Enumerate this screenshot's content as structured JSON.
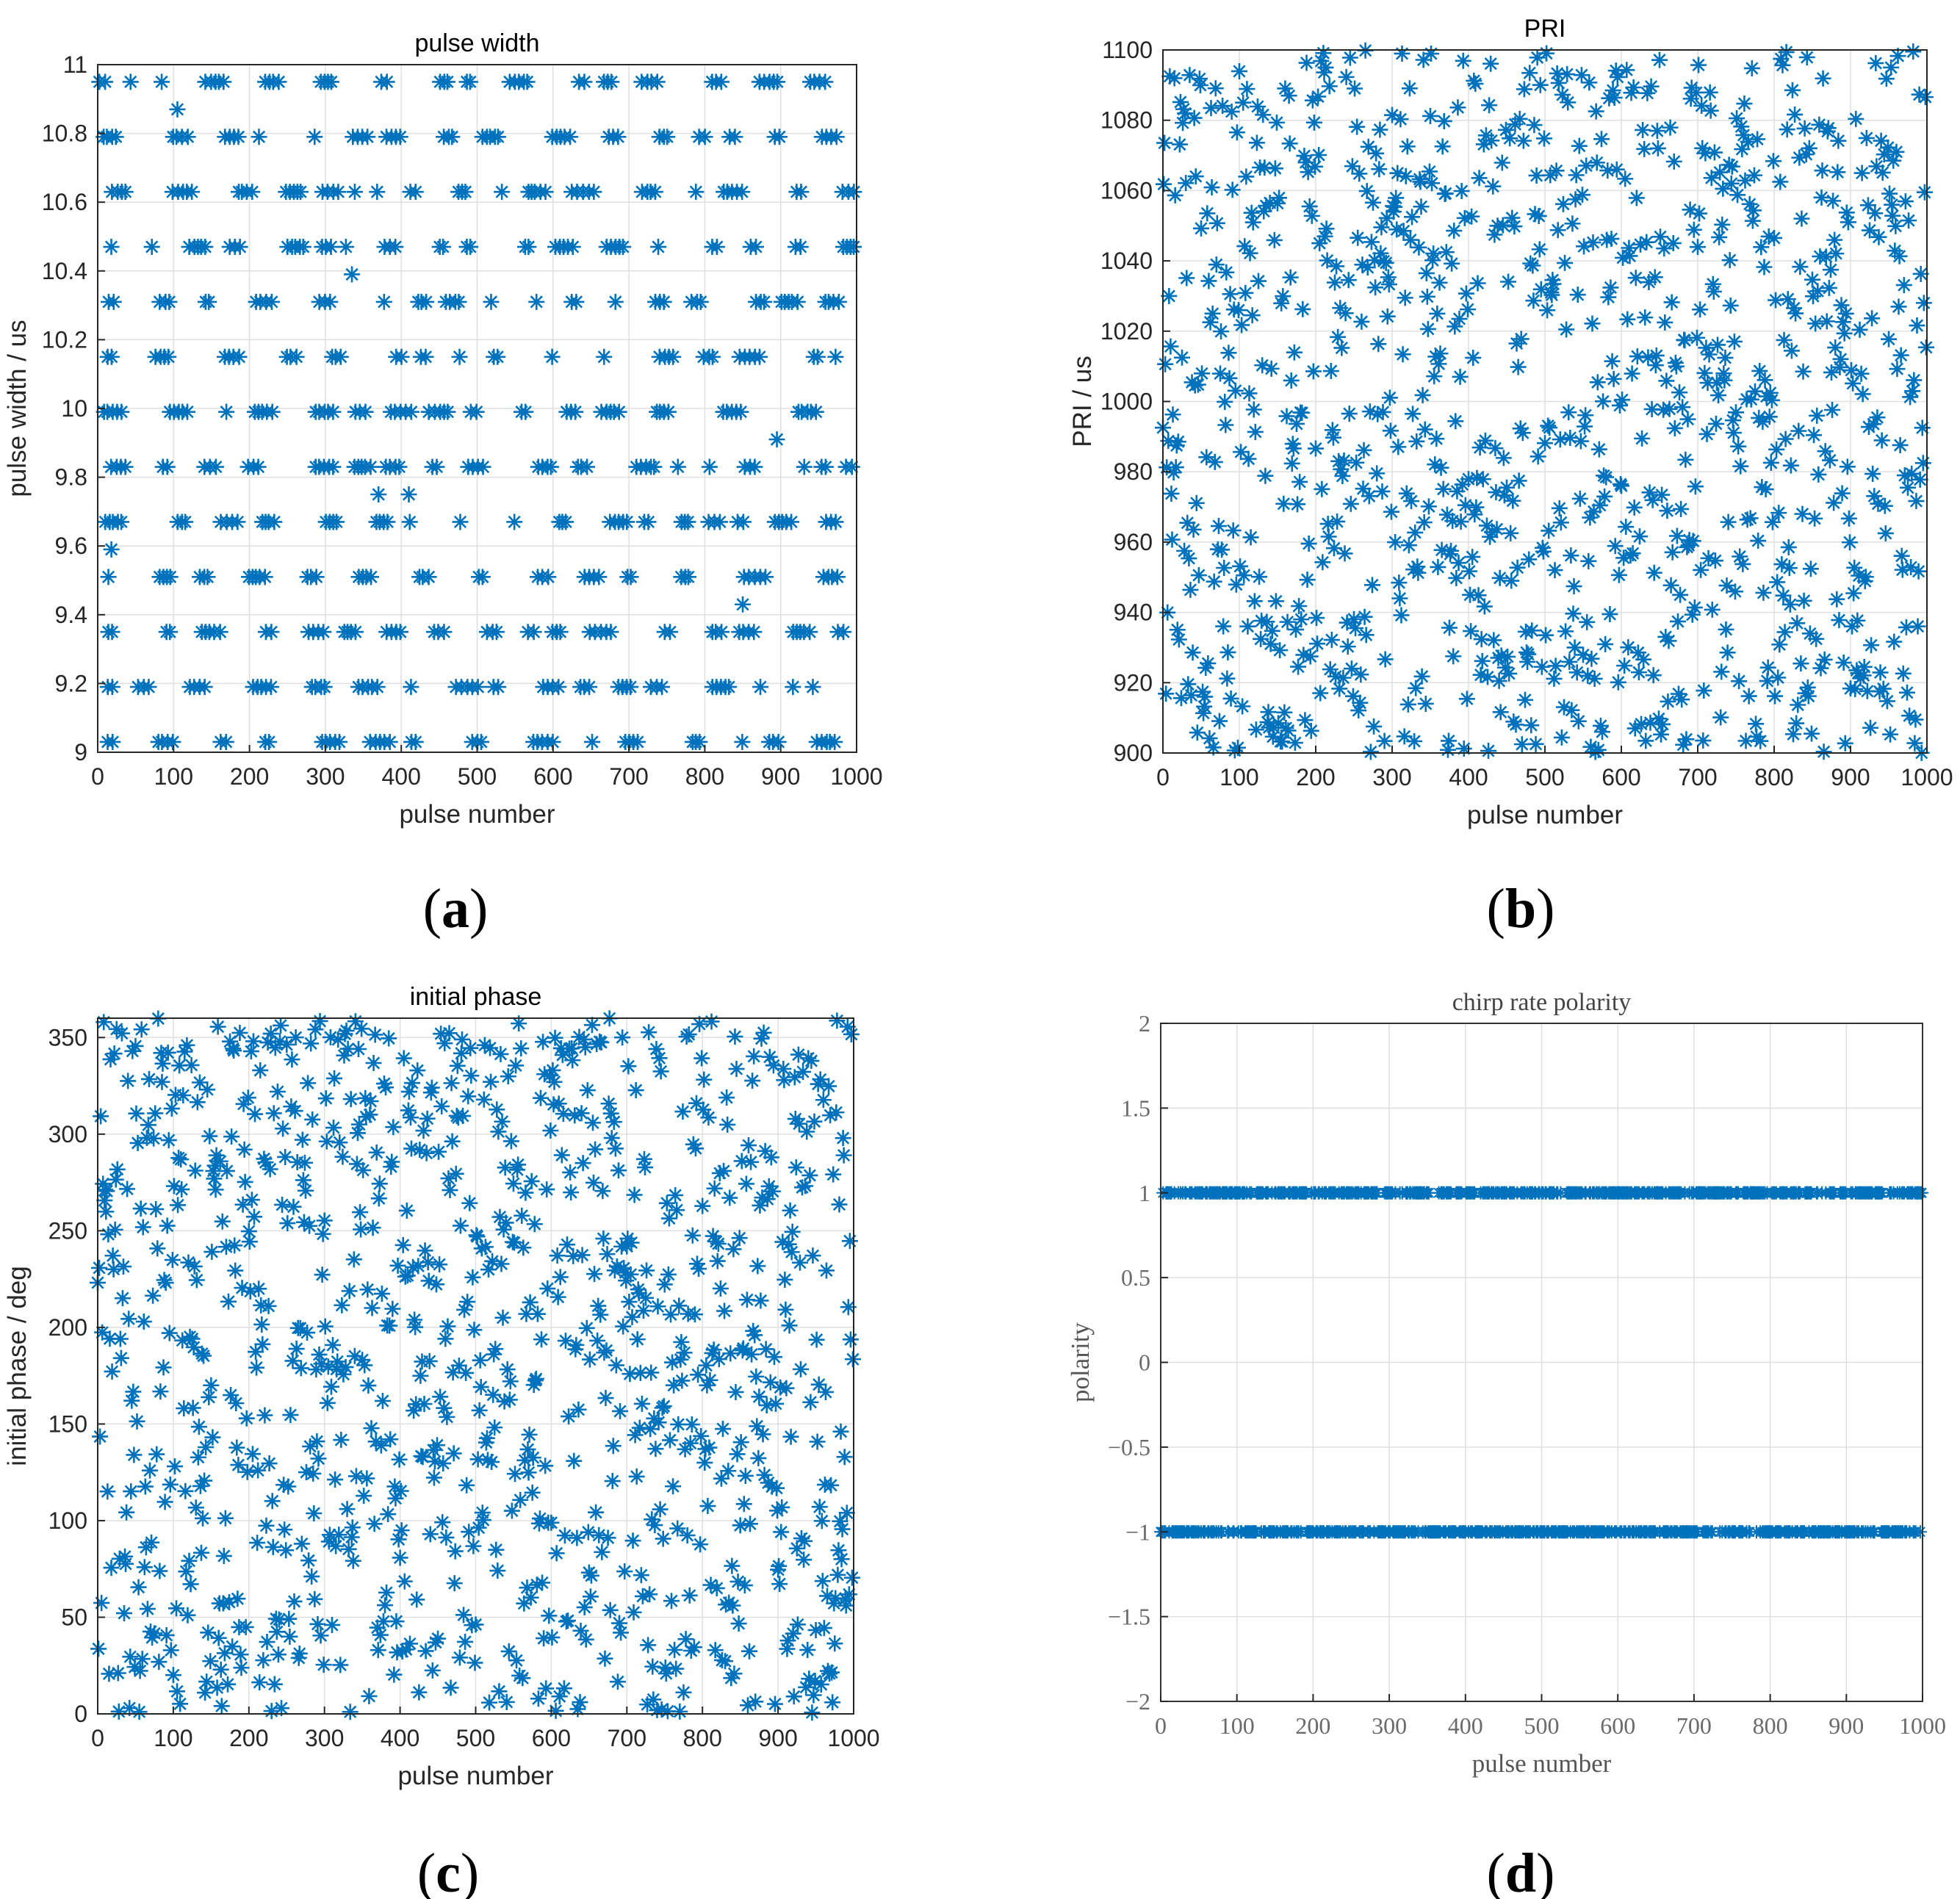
{
  "figure": {
    "marker": "asterisk",
    "marker_color": "#0072BD"
  },
  "chart_data": [
    {
      "type": "scatter",
      "panel_label": "a",
      "title": "pulse width",
      "xlabel": "pulse number",
      "ylabel": "pulse width / us",
      "xlim": [
        0,
        1000
      ],
      "ylim": [
        9,
        11
      ],
      "xticks": [
        0,
        100,
        200,
        300,
        400,
        500,
        600,
        700,
        800,
        900,
        1000
      ],
      "yticks": [
        9,
        9.2,
        9.4,
        9.6,
        9.8,
        10,
        10.2,
        10.4,
        10.6,
        10.8,
        11
      ],
      "ytick_labels": [
        "9",
        "9.2",
        "9.4",
        "9.6",
        "9.8",
        "10",
        "10.2",
        "10.4",
        "10.6",
        "10.8",
        "11"
      ],
      "grid": true,
      "level_values": [
        9.03,
        9.19,
        9.35,
        9.51,
        9.67,
        9.83,
        9.99,
        10.15,
        10.31,
        10.47,
        10.63,
        10.79,
        10.95
      ],
      "points_per_level": 77,
      "outliers": [
        [
          18,
          9.59
        ],
        [
          105,
          10.87
        ],
        [
          335,
          10.39
        ],
        [
          370,
          9.75
        ],
        [
          410,
          9.75
        ],
        [
          850,
          9.43
        ],
        [
          895,
          9.91
        ]
      ],
      "n_points": 1000
    },
    {
      "type": "scatter",
      "panel_label": "b",
      "title": "PRI",
      "xlabel": "pulse number",
      "ylabel": "PRI / us",
      "xlim": [
        0,
        1000
      ],
      "ylim": [
        900,
        1100
      ],
      "xticks": [
        0,
        100,
        200,
        300,
        400,
        500,
        600,
        700,
        800,
        900,
        1000
      ],
      "yticks": [
        900,
        920,
        940,
        960,
        980,
        1000,
        1020,
        1040,
        1060,
        1080,
        1100
      ],
      "ytick_labels": [
        "900",
        "920",
        "940",
        "960",
        "980",
        "1000",
        "1020",
        "1040",
        "1060",
        "1080",
        "1100"
      ],
      "grid": true,
      "distribution": "uniform",
      "y_range": [
        900,
        1100
      ],
      "n_points": 1000
    },
    {
      "type": "scatter",
      "panel_label": "c",
      "title": "initial phase",
      "xlabel": "pulse number",
      "ylabel": "initial phase / deg",
      "xlim": [
        0,
        1000
      ],
      "ylim": [
        0,
        360
      ],
      "xticks": [
        0,
        100,
        200,
        300,
        400,
        500,
        600,
        700,
        800,
        900,
        1000
      ],
      "yticks": [
        0,
        50,
        100,
        150,
        200,
        250,
        300,
        350
      ],
      "ytick_labels": [
        "0",
        "50",
        "100",
        "150",
        "200",
        "250",
        "300",
        "350"
      ],
      "grid": true,
      "distribution": "uniform",
      "y_range": [
        0,
        360
      ],
      "n_points": 1000
    },
    {
      "type": "scatter",
      "panel_label": "d",
      "title": "chirp rate polarity",
      "xlabel": "pulse number",
      "ylabel": "polarity",
      "xlim": [
        0,
        1000
      ],
      "ylim": [
        -2,
        2
      ],
      "xticks": [
        0,
        100,
        200,
        300,
        400,
        500,
        600,
        700,
        800,
        900,
        1000
      ],
      "yticks": [
        -2,
        -1.5,
        -1,
        -0.5,
        0,
        0.5,
        1,
        1.5,
        2
      ],
      "ytick_labels": [
        "−2",
        "−1.5",
        "−1",
        "−0.5",
        "0",
        "0.5",
        "1",
        "1.5",
        "2"
      ],
      "grid": true,
      "level_values": [
        1,
        -1
      ],
      "n_points": 1000
    }
  ]
}
